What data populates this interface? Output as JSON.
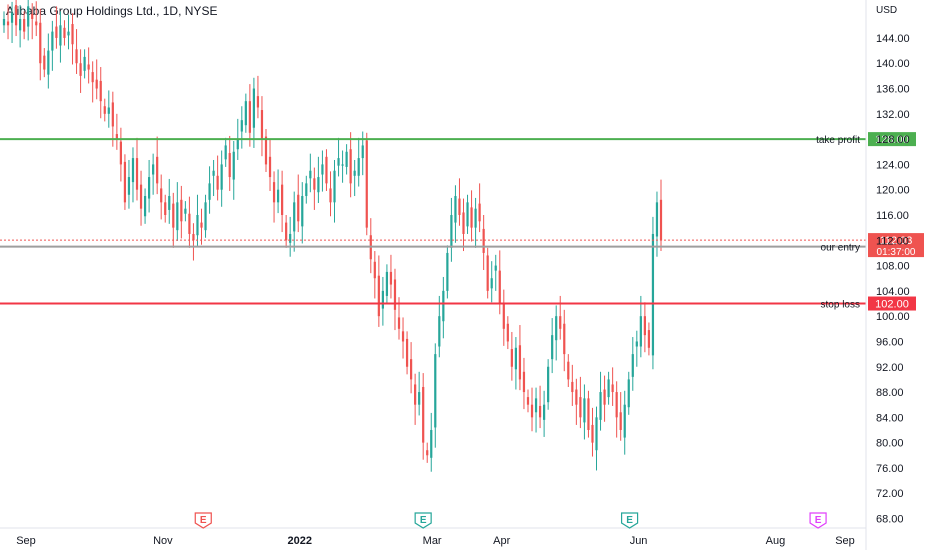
{
  "header": {
    "title": "Alibaba Group Holdings Ltd., 1D, NYSE"
  },
  "chart_data": {
    "type": "candlestick",
    "symbol": "Alibaba Group Holdings Ltd., 1D, NYSE",
    "currency_label": "USD",
    "ylim": [
      66.5,
      150
    ],
    "y_ticks": [
      "68.00",
      "72.00",
      "76.00",
      "80.00",
      "84.00",
      "88.00",
      "92.00",
      "96.00",
      "100.00",
      "104.00",
      "108.00",
      "112.00",
      "116.00",
      "120.00",
      "124.00",
      "128.00",
      "132.00",
      "136.00",
      "140.00",
      "144.00"
    ],
    "y_tick_values": [
      68,
      72,
      76,
      80,
      84,
      88,
      92,
      96,
      100,
      104,
      108,
      112,
      116,
      120,
      124,
      128,
      132,
      136,
      140,
      144
    ],
    "x_ticks": [
      {
        "label": "Sep",
        "day": 0
      },
      {
        "label": "Nov",
        "day": 61
      },
      {
        "label": "2022",
        "day": 122
      },
      {
        "label": "Mar",
        "day": 181
      },
      {
        "label": "Apr",
        "day": 212
      },
      {
        "label": "Jun",
        "day": 273
      },
      {
        "label": "Aug",
        "day": 334
      },
      {
        "label": "Sep",
        "day": 365
      }
    ],
    "earnings_markers": [
      {
        "label": "E",
        "day": 79,
        "color": "#ef5350"
      },
      {
        "label": "E",
        "day": 177,
        "color": "#26a69a"
      },
      {
        "label": "E",
        "day": 269,
        "color": "#26a69a"
      },
      {
        "label": "E",
        "day": 353,
        "color": "#e040fb"
      }
    ],
    "horizontal_lines": [
      {
        "name": "take profit",
        "value": 128.0,
        "label": "128.00",
        "color": "#4caf50"
      },
      {
        "name": "our entry",
        "value": 111.0,
        "label": "111.00",
        "color": "#9e9e9e"
      },
      {
        "name": "stop loss",
        "value": 102.0,
        "label": "102.00",
        "color": "#f23645"
      }
    ],
    "last_price": {
      "value": 112.03,
      "label": "112.03",
      "countdown": "01:37:00",
      "color": "#ef5350"
    },
    "candles_close": [
      147,
      146,
      148,
      146,
      147,
      145,
      149,
      147,
      146,
      140,
      139,
      142,
      145,
      144,
      146,
      144,
      145,
      143,
      140,
      138,
      141,
      139,
      137,
      136,
      134,
      132,
      133,
      130,
      128,
      124,
      118,
      122,
      125,
      120,
      117,
      119,
      122,
      124,
      121,
      118,
      116,
      119,
      114,
      118,
      115,
      117,
      113,
      112,
      116,
      114,
      118,
      121,
      123,
      120,
      124,
      127,
      122,
      126,
      128,
      131,
      134,
      129,
      136,
      133,
      128,
      124,
      122,
      118,
      120,
      116,
      112,
      113,
      118,
      115,
      119,
      121,
      123,
      120,
      122,
      124,
      121,
      118,
      123,
      125,
      124,
      126,
      121,
      123,
      125,
      127,
      114,
      109,
      106,
      100,
      104,
      107,
      105,
      101,
      98,
      96,
      92,
      90,
      86,
      88,
      80,
      78,
      82,
      94,
      100,
      104,
      110,
      116,
      119,
      116,
      113,
      118,
      114,
      117,
      115,
      110,
      104,
      106,
      108,
      102,
      98,
      96,
      92,
      95,
      90,
      88,
      86,
      84,
      87,
      84,
      86,
      92,
      97,
      100,
      98,
      94,
      90,
      88,
      86,
      84,
      87,
      82,
      80,
      84,
      88,
      86,
      90,
      88,
      84,
      82,
      86,
      90,
      94,
      96,
      100,
      97,
      95,
      113,
      118,
      112
    ]
  }
}
